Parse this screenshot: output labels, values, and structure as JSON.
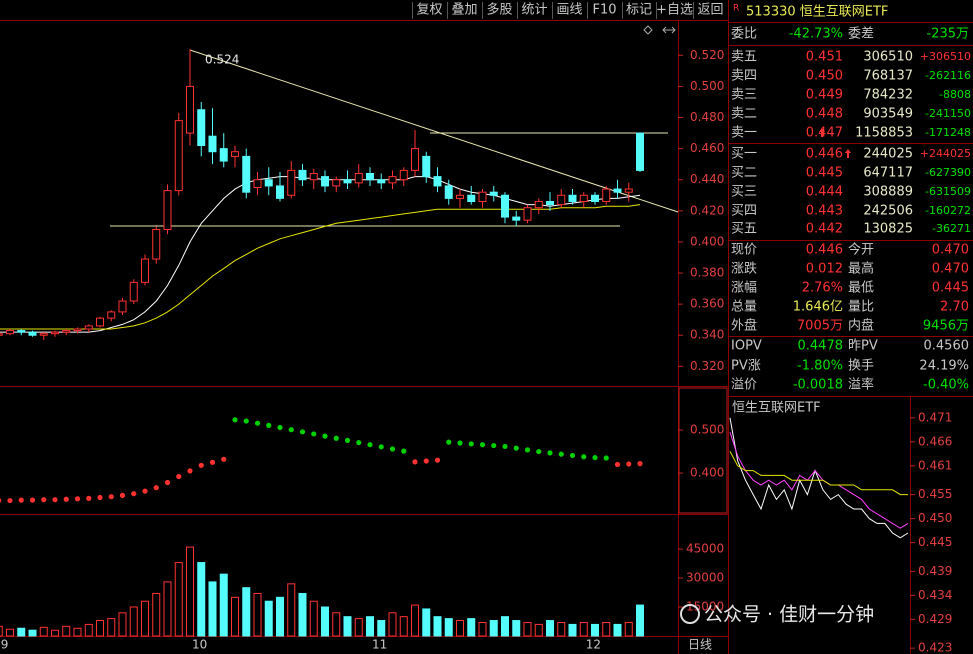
{
  "toolbar": [
    "复权",
    "叠加",
    "多股",
    "统计",
    "画线",
    "F10",
    "标记",
    "+自选",
    "返回"
  ],
  "header": {
    "badge": "R",
    "title": "513330 恒生互联网ETF"
  },
  "ratio": [
    "委比",
    "-42.73%",
    "委差",
    "-235万"
  ],
  "asks": [
    [
      "卖五",
      "0.451",
      "306510",
      "+306510"
    ],
    [
      "卖四",
      "0.450",
      "768137",
      "-262116"
    ],
    [
      "卖三",
      "0.449",
      "784232",
      "-8808"
    ],
    [
      "卖二",
      "0.448",
      "903549",
      "-241150"
    ],
    [
      "卖一",
      "0.447",
      "1158853",
      "-171248"
    ]
  ],
  "bids": [
    [
      "买一",
      "0.446",
      "244025",
      "+244025"
    ],
    [
      "买二",
      "0.445",
      "647117",
      "-627390"
    ],
    [
      "买三",
      "0.444",
      "308889",
      "-631509"
    ],
    [
      "买四",
      "0.443",
      "242506",
      "-160272"
    ],
    [
      "买五",
      "0.442",
      "130825",
      "-36271"
    ]
  ],
  "stats": [
    [
      "现价",
      "0.446",
      "今开",
      "0.470"
    ],
    [
      "涨跌",
      "0.012",
      "最高",
      "0.470"
    ],
    [
      "涨幅",
      "2.76%",
      "最低",
      "0.445"
    ],
    [
      "总量",
      "1.646亿",
      "量比",
      "2.70"
    ],
    [
      "外盘",
      "7005万",
      "内盘",
      "9456万"
    ],
    [
      "IOPV",
      "0.4478",
      "昨PV",
      "0.4560"
    ],
    [
      "PV涨",
      "-1.80%",
      "换手",
      "24.19%"
    ],
    [
      "溢价",
      "-0.0018",
      "溢率",
      "-0.40%"
    ]
  ],
  "watermark": "公众号 · 佳财一分钟",
  "chart_data": [
    {
      "type": "candlestick",
      "annotation": "0.524",
      "period": "日线",
      "up_color": "#ff3232",
      "down_color": "#54fcfc",
      "categories": [
        "9",
        null,
        null,
        null,
        null,
        null,
        null,
        null,
        null,
        null,
        null,
        null,
        null,
        null,
        null,
        null,
        null,
        "10",
        null,
        null,
        null,
        null,
        null,
        null,
        null,
        null,
        null,
        null,
        null,
        null,
        null,
        null,
        null,
        "11",
        null,
        null,
        null,
        null,
        null,
        null,
        null,
        null,
        null,
        null,
        null,
        null,
        null,
        null,
        null,
        null,
        null,
        null,
        "12",
        null,
        null,
        null,
        null,
        null
      ],
      "ohlc": [
        [
          0.34,
          0.342,
          0.338,
          0.341
        ],
        [
          0.341,
          0.344,
          0.34,
          0.343
        ],
        [
          0.343,
          0.344,
          0.34,
          0.342
        ],
        [
          0.342,
          0.343,
          0.339,
          0.34
        ],
        [
          0.34,
          0.342,
          0.337,
          0.341
        ],
        [
          0.341,
          0.343,
          0.339,
          0.342
        ],
        [
          0.342,
          0.344,
          0.34,
          0.343
        ],
        [
          0.343,
          0.345,
          0.341,
          0.344
        ],
        [
          0.344,
          0.347,
          0.342,
          0.346
        ],
        [
          0.346,
          0.352,
          0.345,
          0.351
        ],
        [
          0.351,
          0.356,
          0.349,
          0.355
        ],
        [
          0.355,
          0.364,
          0.353,
          0.362
        ],
        [
          0.362,
          0.376,
          0.36,
          0.374
        ],
        [
          0.374,
          0.392,
          0.372,
          0.389
        ],
        [
          0.389,
          0.41,
          0.386,
          0.408
        ],
        [
          0.408,
          0.437,
          0.405,
          0.433
        ],
        [
          0.433,
          0.483,
          0.43,
          0.478
        ],
        [
          0.47,
          0.524,
          0.462,
          0.5
        ],
        [
          0.485,
          0.49,
          0.455,
          0.462
        ],
        [
          0.468,
          0.486,
          0.45,
          0.458
        ],
        [
          0.46,
          0.47,
          0.448,
          0.452
        ],
        [
          0.455,
          0.462,
          0.448,
          0.458
        ],
        [
          0.455,
          0.46,
          0.428,
          0.432
        ],
        [
          0.435,
          0.445,
          0.43,
          0.44
        ],
        [
          0.44,
          0.448,
          0.43,
          0.436
        ],
        [
          0.436,
          0.445,
          0.426,
          0.428
        ],
        [
          0.43,
          0.452,
          0.428,
          0.446
        ],
        [
          0.446,
          0.45,
          0.436,
          0.44
        ],
        [
          0.44,
          0.447,
          0.434,
          0.444
        ],
        [
          0.442,
          0.446,
          0.432,
          0.436
        ],
        [
          0.436,
          0.442,
          0.432,
          0.44
        ],
        [
          0.44,
          0.446,
          0.434,
          0.438
        ],
        [
          0.438,
          0.45,
          0.435,
          0.444
        ],
        [
          0.444,
          0.448,
          0.436,
          0.44
        ],
        [
          0.44,
          0.444,
          0.434,
          0.438
        ],
        [
          0.438,
          0.446,
          0.434,
          0.442
        ],
        [
          0.44,
          0.448,
          0.436,
          0.446
        ],
        [
          0.446,
          0.472,
          0.442,
          0.46
        ],
        [
          0.455,
          0.458,
          0.438,
          0.442
        ],
        [
          0.442,
          0.448,
          0.432,
          0.436
        ],
        [
          0.436,
          0.44,
          0.424,
          0.428
        ],
        [
          0.428,
          0.434,
          0.422,
          0.43
        ],
        [
          0.43,
          0.436,
          0.424,
          0.426
        ],
        [
          0.426,
          0.434,
          0.422,
          0.432
        ],
        [
          0.432,
          0.436,
          0.426,
          0.43
        ],
        [
          0.43,
          0.432,
          0.412,
          0.416
        ],
        [
          0.416,
          0.42,
          0.41,
          0.414
        ],
        [
          0.414,
          0.424,
          0.412,
          0.422
        ],
        [
          0.422,
          0.428,
          0.418,
          0.426
        ],
        [
          0.426,
          0.432,
          0.42,
          0.424
        ],
        [
          0.424,
          0.434,
          0.422,
          0.43
        ],
        [
          0.43,
          0.434,
          0.424,
          0.426
        ],
        [
          0.426,
          0.432,
          0.422,
          0.43
        ],
        [
          0.43,
          0.432,
          0.424,
          0.426
        ],
        [
          0.426,
          0.436,
          0.424,
          0.434
        ],
        [
          0.434,
          0.44,
          0.428,
          0.432
        ],
        [
          0.432,
          0.438,
          0.426,
          0.434
        ],
        [
          0.47,
          0.47,
          0.445,
          0.446
        ]
      ],
      "ma": [
        {
          "color": "#ffffff",
          "values": [
            0.342,
            0.342,
            0.342,
            0.342,
            0.342,
            0.342,
            0.342,
            0.342,
            0.342,
            0.343,
            0.345,
            0.347,
            0.35,
            0.355,
            0.362,
            0.372,
            0.385,
            0.4,
            0.412,
            0.42,
            0.428,
            0.434,
            0.438,
            0.44,
            0.441,
            0.442,
            0.442,
            0.441,
            0.441,
            0.44,
            0.44,
            0.44,
            0.44,
            0.44,
            0.44,
            0.44,
            0.44,
            0.442,
            0.442,
            0.44,
            0.437,
            0.434,
            0.432,
            0.431,
            0.43,
            0.428,
            0.426,
            0.424,
            0.424,
            0.423,
            0.424,
            0.425,
            0.426,
            0.427,
            0.428,
            0.428,
            0.429,
            0.43
          ]
        },
        {
          "color": "#e6e600",
          "values": [
            0.344,
            0.344,
            0.344,
            0.344,
            0.344,
            0.344,
            0.344,
            0.344,
            0.344,
            0.344,
            0.344,
            0.345,
            0.346,
            0.348,
            0.351,
            0.355,
            0.36,
            0.366,
            0.372,
            0.378,
            0.383,
            0.388,
            0.392,
            0.396,
            0.399,
            0.402,
            0.404,
            0.406,
            0.408,
            0.41,
            0.412,
            0.413,
            0.414,
            0.415,
            0.416,
            0.417,
            0.418,
            0.419,
            0.42,
            0.421,
            0.421,
            0.421,
            0.421,
            0.421,
            0.421,
            0.421,
            0.421,
            0.421,
            0.421,
            0.421,
            0.422,
            0.422,
            0.422,
            0.422,
            0.423,
            0.423,
            0.423,
            0.424
          ]
        }
      ],
      "ylim": [
        0.308,
        0.544
      ],
      "yticks": [
        {
          "value": 0.52,
          "label": "0.520"
        },
        {
          "value": 0.5,
          "label": "0.500"
        },
        {
          "value": 0.48,
          "label": "0.480"
        },
        {
          "value": 0.46,
          "label": "0.460"
        },
        {
          "value": 0.44,
          "label": "0.440"
        },
        {
          "value": 0.42,
          "label": "0.420"
        },
        {
          "value": 0.4,
          "label": "0.400"
        },
        {
          "value": 0.38,
          "label": "0.380"
        },
        {
          "value": 0.36,
          "label": "0.360"
        },
        {
          "value": 0.34,
          "label": "0.340"
        },
        {
          "value": 0.32,
          "label": "0.320"
        }
      ]
    },
    {
      "type": "sar",
      "up_color": "#ff3232",
      "down_color": "#00d000",
      "values": [
        0.336,
        0.336,
        0.337,
        0.337,
        0.338,
        0.338,
        0.339,
        0.34,
        0.341,
        0.343,
        0.345,
        0.348,
        0.352,
        0.358,
        0.366,
        0.378,
        0.392,
        0.405,
        0.418,
        0.425,
        0.432,
        0.524,
        0.521,
        0.516,
        0.511,
        0.506,
        0.501,
        0.496,
        0.491,
        0.486,
        0.481,
        0.476,
        0.471,
        0.466,
        0.461,
        0.456,
        0.451,
        0.426,
        0.428,
        0.43,
        0.472,
        0.47,
        0.468,
        0.466,
        0.464,
        0.462,
        0.458,
        0.454,
        0.45,
        0.447,
        0.444,
        0.441,
        0.438,
        0.436,
        0.435,
        0.42,
        0.421,
        0.422
      ],
      "ylim": [
        0.307,
        0.598
      ],
      "yticks": [
        {
          "value": 0.5,
          "label": "0.500"
        },
        {
          "value": 0.4,
          "label": "0.400"
        }
      ]
    },
    {
      "type": "bar",
      "values": [
        5000,
        3500,
        4000,
        3000,
        4500,
        3000,
        5000,
        4000,
        6000,
        8000,
        9000,
        12000,
        15000,
        18000,
        22000,
        28000,
        38000,
        46000,
        38000,
        28000,
        32000,
        20000,
        25000,
        22000,
        18000,
        20000,
        27000,
        22000,
        18000,
        15000,
        12000,
        10000,
        9000,
        10000,
        8000,
        12000,
        10000,
        16000,
        14000,
        10000,
        9000,
        8000,
        9000,
        7000,
        8000,
        10000,
        8000,
        7000,
        6000,
        8000,
        7000,
        6000,
        7000,
        6000,
        7000,
        6000,
        7000,
        16000
      ],
      "ylim": [
        0,
        62100
      ],
      "yticks": [
        45000,
        30000,
        15000
      ]
    },
    {
      "type": "line",
      "title": "恒生互联网ETF",
      "series": [
        {
          "color": "#ffffff",
          "values": [
            0.471,
            0.462,
            0.458,
            0.455,
            0.452,
            0.457,
            0.454,
            0.456,
            0.452,
            0.458,
            0.455,
            0.46,
            0.456,
            0.454,
            0.455,
            0.453,
            0.452,
            0.452,
            0.45,
            0.449,
            0.449,
            0.447,
            0.446,
            0.447
          ]
        },
        {
          "color": "#ff40ff",
          "values": [
            0.468,
            0.463,
            0.46,
            0.458,
            0.457,
            0.458,
            0.457,
            0.458,
            0.456,
            0.459,
            0.458,
            0.46,
            0.458,
            0.457,
            0.457,
            0.456,
            0.455,
            0.454,
            0.452,
            0.451,
            0.45,
            0.449,
            0.448,
            0.449
          ]
        },
        {
          "color": "#e6e600",
          "values": [
            0.464,
            0.461,
            0.46,
            0.46,
            0.459,
            0.459,
            0.459,
            0.459,
            0.458,
            0.458,
            0.458,
            0.458,
            0.458,
            0.457,
            0.457,
            0.457,
            0.457,
            0.456,
            0.456,
            0.456,
            0.456,
            0.456,
            0.455,
            0.455
          ]
        }
      ],
      "ylim": [
        0.4222,
        0.4743
      ],
      "yticks": [
        {
          "value": 0.471,
          "label": "0.471"
        },
        {
          "value": 0.466,
          "label": "0.466"
        },
        {
          "value": 0.461,
          "label": "0.461"
        },
        {
          "value": 0.455,
          "label": "0.455"
        },
        {
          "value": 0.45,
          "label": "0.450"
        },
        {
          "value": 0.445,
          "label": "0.445"
        },
        {
          "value": 0.439,
          "label": "0.439"
        },
        {
          "value": 0.434,
          "label": "0.434"
        },
        {
          "value": 0.429,
          "label": "0.429"
        },
        {
          "value": 0.423,
          "label": "0.423"
        }
      ]
    }
  ]
}
